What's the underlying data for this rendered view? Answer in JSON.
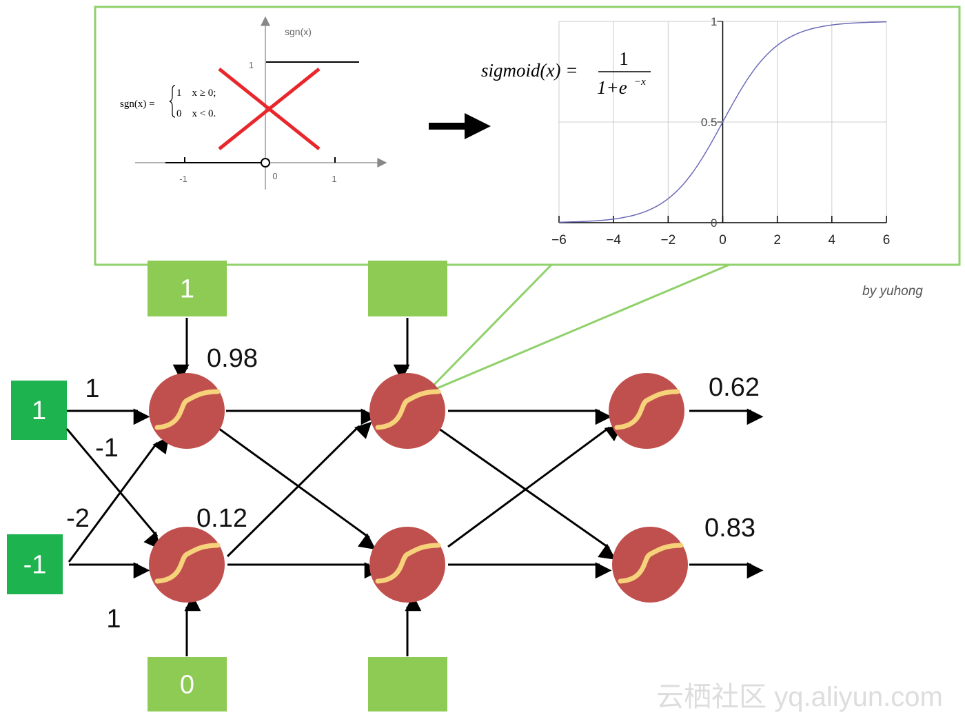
{
  "colors": {
    "callout_border": "#8fd16a",
    "input_box": "#1db34f",
    "bias_box": "#8dcb55",
    "neuron_fill": "#c0504d",
    "neuron_curve": "#f6d27a",
    "cross": "#e8262b",
    "sigmoid_curve": "#6a6ab8",
    "grid": "#cccccc"
  },
  "sgn_panel": {
    "axis_label": "sgn(x)",
    "formula_lhs": "sgn(x) =",
    "case1": "1    x ≥ 0;",
    "case2": "0    x < 0.",
    "y_tick": "1",
    "x_ticks": [
      "-1",
      "0",
      "1"
    ],
    "crossed_out": true
  },
  "sigmoid_panel": {
    "formula_lhs": "sigmoid(x) =",
    "numerator": "1",
    "denominator": "1+e",
    "exponent": "−x",
    "chart_data": {
      "type": "line",
      "function": "1/(1+e^-x)",
      "xlim": [
        -6,
        6
      ],
      "ylim": [
        0,
        1
      ],
      "x_ticks": [
        "−6",
        "−4",
        "−2",
        "0",
        "2",
        "4",
        "6"
      ],
      "y_ticks": [
        "0",
        "0.5",
        "1"
      ],
      "grid": true
    }
  },
  "credit": "by yuhong",
  "watermark": "云栖社区 yq.aliyun.com",
  "network": {
    "inputs": [
      "1",
      "-1"
    ],
    "biases": [
      "1",
      "",
      "0",
      ""
    ],
    "weights": [
      "1",
      "-1",
      "-2",
      "1"
    ],
    "hidden_outputs": [
      "0.98",
      "0.12"
    ],
    "outputs": [
      "0.62",
      "0.83"
    ],
    "activation_icon": "sigmoid-curve-icon"
  }
}
